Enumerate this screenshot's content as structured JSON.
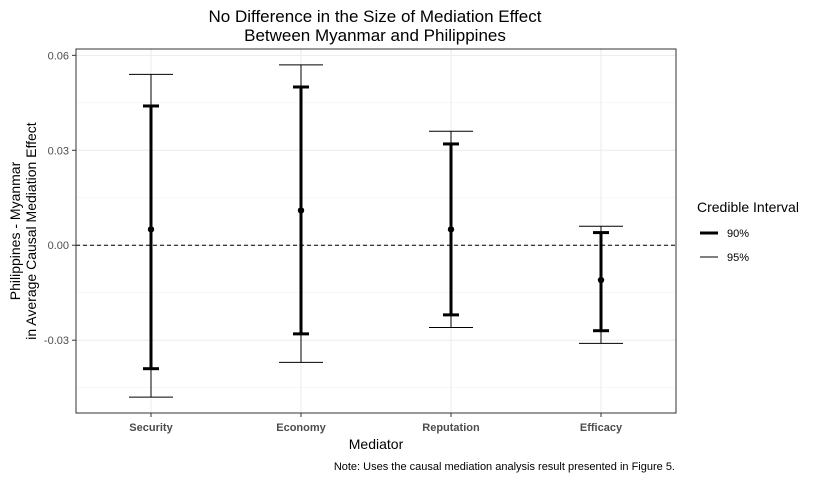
{
  "chart_data": {
    "type": "errorbar",
    "title_lines": [
      "No Difference in the Size of Mediation Effect",
      "Between Myanmar and Philippines"
    ],
    "xlabel": "Mediator",
    "ylabel_lines": [
      "Philippines - Myanmar",
      "in Average Causal Mediation Effect"
    ],
    "categories": [
      "Security",
      "Economy",
      "Reputation",
      "Efficacy"
    ],
    "point_estimates": [
      0.005,
      0.011,
      0.005,
      -0.011
    ],
    "series": [
      {
        "name": "90%",
        "lower": [
          -0.039,
          -0.028,
          -0.022,
          -0.027
        ],
        "upper": [
          0.044,
          0.05,
          0.032,
          0.004
        ]
      },
      {
        "name": "95%",
        "lower": [
          -0.048,
          -0.037,
          -0.026,
          -0.031
        ],
        "upper": [
          0.054,
          0.057,
          0.036,
          0.006
        ]
      }
    ],
    "reference_line": 0.0,
    "ylim": [
      -0.053,
      0.062
    ],
    "yticks": [
      0.06,
      0.03,
      0.0,
      -0.03
    ],
    "ytick_labels": [
      "0.06",
      "0.03",
      "0.00",
      "-0.03"
    ],
    "legend": {
      "title": "Credible Interval",
      "position": "right"
    },
    "grid": true,
    "note": "Note: Uses the causal mediation analysis result presented in Figure 5."
  }
}
